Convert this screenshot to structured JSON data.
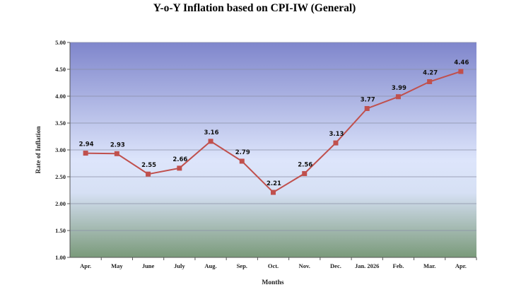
{
  "chart_data": {
    "type": "line",
    "title": "Y-o-Y Inflation based on CPI-IW (General)",
    "xlabel": "Months",
    "ylabel": "Rate of Inflation",
    "categories": [
      "Apr.",
      "May",
      "June",
      "July",
      "Aug.",
      "Sep.",
      "Oct.",
      "Nov.",
      "Dec.",
      "Jan. 2026",
      "Feb.",
      "Mar.",
      "Apr."
    ],
    "series": [
      {
        "values": [
          2.94,
          2.93,
          2.55,
          2.66,
          3.16,
          2.79,
          2.21,
          2.56,
          3.13,
          3.77,
          3.99,
          4.27,
          4.46
        ],
        "labels": [
          "2.94",
          "2.93",
          "2.55",
          "2.66",
          "3.16",
          "2.79",
          "2.21",
          "2.56",
          "3.13",
          "3.77",
          "3.99",
          "4.27",
          "4.46"
        ],
        "color": "#c0504d"
      }
    ],
    "ylim": [
      1.0,
      5.0
    ],
    "yticks": [
      "1.00",
      "1.50",
      "2.00",
      "2.50",
      "3.00",
      "3.50",
      "4.00",
      "4.50",
      "5.00"
    ],
    "grid": true,
    "legend": "none",
    "background": {
      "top": "#7f86cc",
      "middle": "#dde5fb",
      "bottom": "#7a9a7a"
    }
  }
}
